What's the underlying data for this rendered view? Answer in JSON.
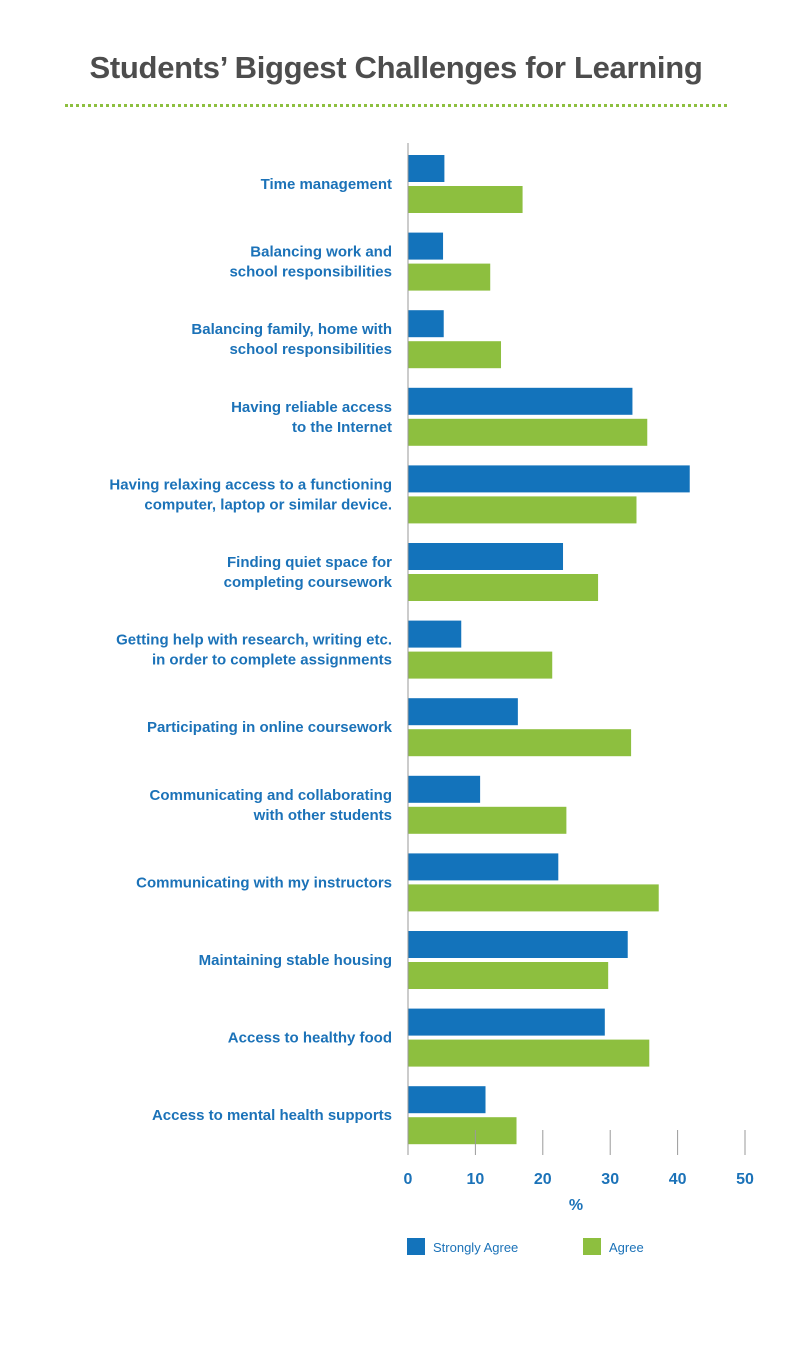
{
  "title": "Students’ Biggest Challenges for Learning",
  "colors": {
    "strongly_agree": "#1373bb",
    "agree": "#8dbf3f",
    "text_blue": "#1b72b8",
    "axis": "#9a9a9a"
  },
  "chart_data": {
    "type": "bar",
    "orientation": "horizontal",
    "title": "Students’ Biggest Challenges for Learning",
    "xlabel": "%",
    "ylabel": "",
    "xlim": [
      0,
      50
    ],
    "xticks": [
      0,
      10,
      20,
      30,
      40,
      50
    ],
    "grid": false,
    "legend_position": "bottom",
    "categories": [
      [
        "Time management"
      ],
      [
        "Balancing work and",
        "school responsibilities"
      ],
      [
        "Balancing family, home with",
        "school responsibilities"
      ],
      [
        "Having reliable access",
        "to the Internet"
      ],
      [
        "Having relaxing access to a functioning",
        "computer, laptop or similar device."
      ],
      [
        "Finding quiet space for",
        "completing coursework"
      ],
      [
        "Getting help with research, writing etc.",
        "in order to complete assignments"
      ],
      [
        "Participating in online coursework"
      ],
      [
        "Communicating and collaborating",
        "with other students"
      ],
      [
        "Communicating with my instructors"
      ],
      [
        "Maintaining stable housing"
      ],
      [
        "Access to healthy food"
      ],
      [
        "Access to mental health supports"
      ]
    ],
    "series": [
      {
        "name": "Strongly Agree",
        "color": "#1373bb",
        "values": [
          5.4,
          5.2,
          5.3,
          33.3,
          41.8,
          23.0,
          7.9,
          16.3,
          10.7,
          22.3,
          32.6,
          29.2,
          11.5
        ]
      },
      {
        "name": "Agree",
        "color": "#8dbf3f",
        "values": [
          17.0,
          12.2,
          13.8,
          35.5,
          33.9,
          28.2,
          21.4,
          33.1,
          23.5,
          37.2,
          29.7,
          35.8,
          16.1
        ]
      }
    ]
  }
}
